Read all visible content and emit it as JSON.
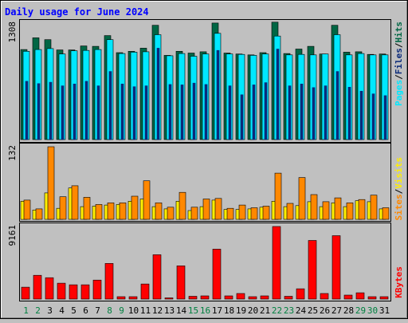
{
  "title": "Daily usage for June 2024",
  "colors": {
    "background": "#c0c0c0",
    "title": "#0000ff",
    "hits": "#006644",
    "files": "#00e8ff",
    "pages": "#0a2a7a",
    "visits": "#ffee00",
    "sites": "#ff8800",
    "kbytes": "#ff0000",
    "weekend_day": "#008040",
    "weekday_day": "#000000"
  },
  "chart_data": [
    {
      "type": "bar",
      "name": "hits-files-pages",
      "ymax_label": "1308",
      "ylim": [
        0,
        1308
      ],
      "series_labels": [
        "Pages",
        "Files",
        "Hits"
      ],
      "categories": [
        "1",
        "2",
        "3",
        "4",
        "5",
        "6",
        "7",
        "8",
        "9",
        "10",
        "11",
        "12",
        "13",
        "14",
        "15",
        "16",
        "17",
        "18",
        "19",
        "20",
        "21",
        "22",
        "23",
        "24",
        "25",
        "26",
        "27",
        "28",
        "29",
        "30",
        "31"
      ],
      "series": [
        {
          "name": "Hits",
          "values": [
            1005,
            1135,
            1115,
            1000,
            1000,
            1045,
            1040,
            1160,
            970,
            985,
            1020,
            1275,
            940,
            985,
            965,
            980,
            1300,
            965,
            955,
            945,
            970,
            1310,
            960,
            1010,
            1040,
            955,
            1275,
            975,
            980,
            950,
            955
          ]
        },
        {
          "name": "Files",
          "values": [
            985,
            1005,
            1015,
            955,
            990,
            995,
            1005,
            1115,
            960,
            975,
            980,
            1170,
            935,
            960,
            930,
            955,
            1185,
            955,
            950,
            940,
            955,
            1155,
            945,
            950,
            945,
            955,
            1170,
            945,
            960,
            945,
            945
          ]
        },
        {
          "name": "Pages",
          "values": [
            650,
            625,
            640,
            600,
            620,
            650,
            600,
            760,
            620,
            590,
            600,
            1020,
            615,
            610,
            630,
            615,
            995,
            600,
            500,
            610,
            635,
            1010,
            600,
            620,
            580,
            600,
            760,
            585,
            540,
            510,
            490
          ]
        }
      ]
    },
    {
      "type": "bar",
      "name": "visits-sites",
      "ymax_label": "132",
      "ylim": [
        0,
        132
      ],
      "series_labels": [
        "Sites",
        "Visits"
      ],
      "categories": [
        "1",
        "2",
        "3",
        "4",
        "5",
        "6",
        "7",
        "8",
        "9",
        "10",
        "11",
        "12",
        "13",
        "14",
        "15",
        "16",
        "17",
        "18",
        "19",
        "20",
        "21",
        "22",
        "23",
        "24",
        "25",
        "26",
        "27",
        "28",
        "29",
        "30",
        "31"
      ],
      "series": [
        {
          "name": "Visits",
          "values": [
            33,
            17,
            48,
            20,
            57,
            23,
            24,
            26,
            27,
            33,
            37,
            23,
            19,
            33,
            16,
            23,
            35,
            18,
            18,
            19,
            22,
            33,
            23,
            25,
            32,
            23,
            30,
            23,
            34,
            32,
            19
          ]
        },
        {
          "name": "Sites",
          "values": [
            35,
            19,
            132,
            41,
            61,
            40,
            27,
            30,
            30,
            42,
            70,
            30,
            22,
            49,
            22,
            37,
            38,
            20,
            26,
            21,
            24,
            84,
            29,
            76,
            45,
            32,
            39,
            30,
            36,
            44,
            21
          ]
        }
      ]
    },
    {
      "type": "bar",
      "name": "kbytes",
      "ymax_label": "9161",
      "ylim": [
        0,
        9161
      ],
      "series_labels": [
        "KBytes"
      ],
      "categories": [
        "1",
        "2",
        "3",
        "4",
        "5",
        "6",
        "7",
        "8",
        "9",
        "10",
        "11",
        "12",
        "13",
        "14",
        "15",
        "16",
        "17",
        "18",
        "19",
        "20",
        "21",
        "22",
        "23",
        "24",
        "25",
        "26",
        "27",
        "28",
        "29",
        "30",
        "31"
      ],
      "series": [
        {
          "name": "KBytes",
          "values": [
            1500,
            3000,
            2700,
            2000,
            1800,
            1800,
            2400,
            4500,
            300,
            300,
            1900,
            5600,
            150,
            4200,
            350,
            400,
            6300,
            400,
            700,
            300,
            400,
            9161,
            350,
            1300,
            7400,
            700,
            8000,
            500,
            800,
            300,
            300
          ]
        }
      ]
    }
  ],
  "day_labels": [
    {
      "label": "1",
      "weekend": true
    },
    {
      "label": "2",
      "weekend": true
    },
    {
      "label": "3",
      "weekend": false
    },
    {
      "label": "4",
      "weekend": false
    },
    {
      "label": "5",
      "weekend": false
    },
    {
      "label": "6",
      "weekend": false
    },
    {
      "label": "7",
      "weekend": false
    },
    {
      "label": "8",
      "weekend": true
    },
    {
      "label": "9",
      "weekend": true
    },
    {
      "label": "10",
      "weekend": false
    },
    {
      "label": "11",
      "weekend": false
    },
    {
      "label": "12",
      "weekend": false
    },
    {
      "label": "13",
      "weekend": false
    },
    {
      "label": "14",
      "weekend": false
    },
    {
      "label": "15",
      "weekend": true
    },
    {
      "label": "16",
      "weekend": true
    },
    {
      "label": "17",
      "weekend": false
    },
    {
      "label": "18",
      "weekend": false
    },
    {
      "label": "19",
      "weekend": false
    },
    {
      "label": "20",
      "weekend": false
    },
    {
      "label": "21",
      "weekend": false
    },
    {
      "label": "22",
      "weekend": true
    },
    {
      "label": "23",
      "weekend": true
    },
    {
      "label": "24",
      "weekend": false
    },
    {
      "label": "25",
      "weekend": false
    },
    {
      "label": "26",
      "weekend": false
    },
    {
      "label": "27",
      "weekend": false
    },
    {
      "label": "28",
      "weekend": false
    },
    {
      "label": "29",
      "weekend": true
    },
    {
      "label": "30",
      "weekend": true
    },
    {
      "label": "31",
      "weekend": false
    }
  ],
  "legend": {
    "top": [
      "Pages",
      "/",
      "Files",
      "/",
      "Hits"
    ],
    "middle": [
      "Sites",
      "/",
      "Visits"
    ],
    "bottom": [
      "KBytes"
    ]
  }
}
